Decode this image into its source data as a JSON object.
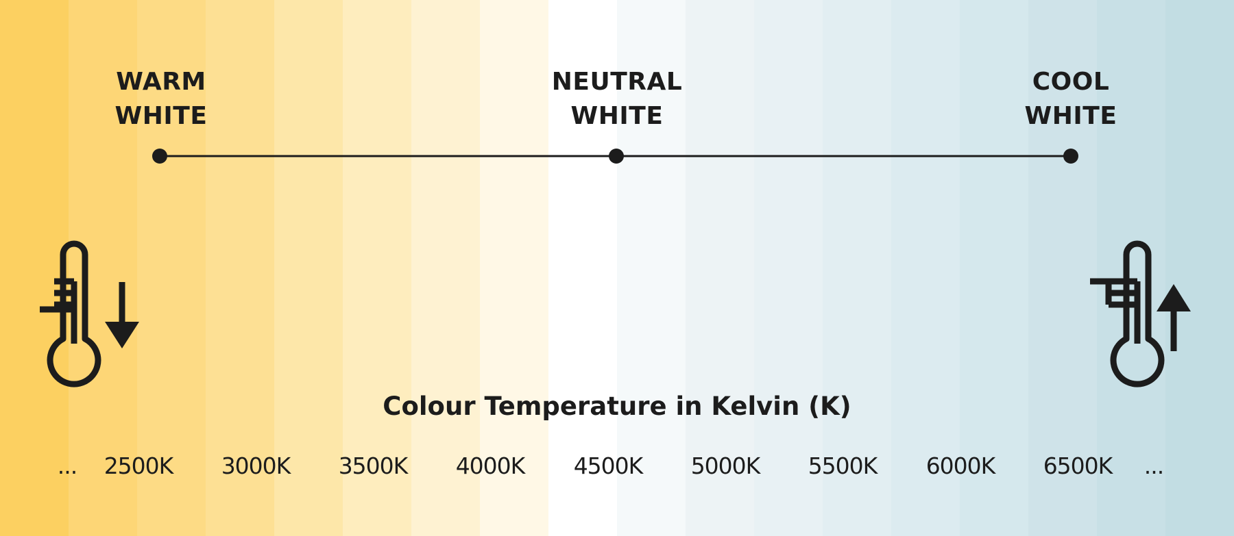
{
  "background": {
    "bands": [
      "#fcd061",
      "#fdd676",
      "#fddb85",
      "#fde094",
      "#fde7a9",
      "#feedbe",
      "#fef2d2",
      "#fff8e6",
      "#ffffff",
      "#f5f9fa",
      "#edf3f5",
      "#e8f1f4",
      "#e2eef2",
      "#dcebf0",
      "#d5e8ed",
      "#cfe3e9",
      "#c8e0e6",
      "#c2dde3"
    ]
  },
  "headings": {
    "warm": [
      "WARM",
      "WHITE"
    ],
    "neutral": [
      "NEUTRAL",
      "WHITE"
    ],
    "cool": [
      "COOL",
      "WHITE"
    ]
  },
  "axis_title": "Colour Temperature in Kelvin (K)",
  "ticks": [
    "...",
    "2500K",
    "3000K",
    "3500K",
    "4000K",
    "4500K",
    "5000K",
    "5500K",
    "6000K",
    "6500K",
    "..."
  ],
  "icons": {
    "left": "thermometer-decrease-icon",
    "right": "thermometer-increase-icon"
  },
  "colors": {
    "ink": "#1c1c1c"
  }
}
